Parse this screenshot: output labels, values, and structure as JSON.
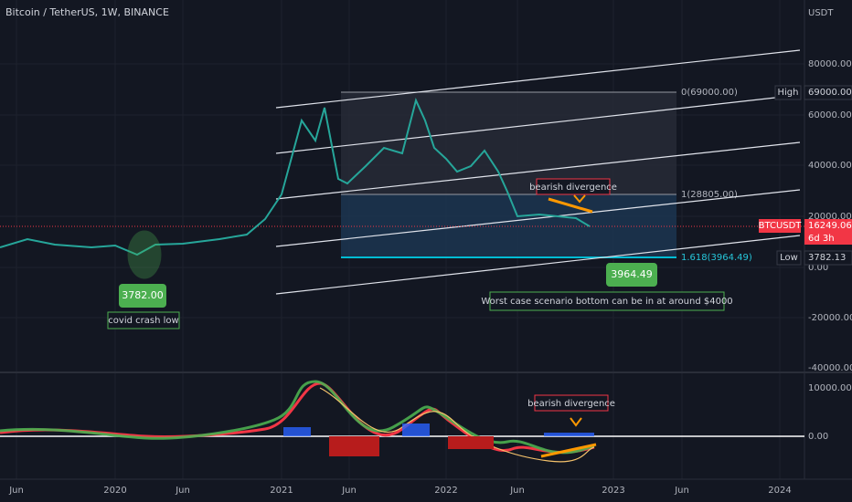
{
  "header": {
    "title": "Bitcoin / TetherUS, 1W, BINANCE",
    "currency": "USDT"
  },
  "price_axis": [
    "80000.00",
    "60000.00",
    "40000.00",
    "20000.00",
    "0.00",
    "-20000.00",
    "-40000.00"
  ],
  "macd_axis": [
    "10000.00",
    "0.00"
  ],
  "time_axis": [
    "Jun",
    "2020",
    "Jun",
    "2021",
    "Jun",
    "2022",
    "Jun",
    "2023",
    "Jun",
    "2024"
  ],
  "fib_levels": [
    "0(69000.00)",
    "1(28805.00)",
    "1.618(3964.49)"
  ],
  "price_tags": {
    "high": {
      "label": "High",
      "value": "69000.00"
    },
    "last": {
      "label": "BTCUSDT",
      "value": "16249.06",
      "countdown": "6d 3h"
    },
    "low": {
      "label": "Low",
      "value": "3782.13"
    }
  },
  "annotations": {
    "divergence_price": "bearish divergence",
    "target": "3964.49",
    "worst_case": "Worst case scenario bottom can be in at around $4000",
    "covid_low": "3782.00",
    "covid_label": "covid crash low",
    "divergence_macd": "bearish divergence"
  }
}
